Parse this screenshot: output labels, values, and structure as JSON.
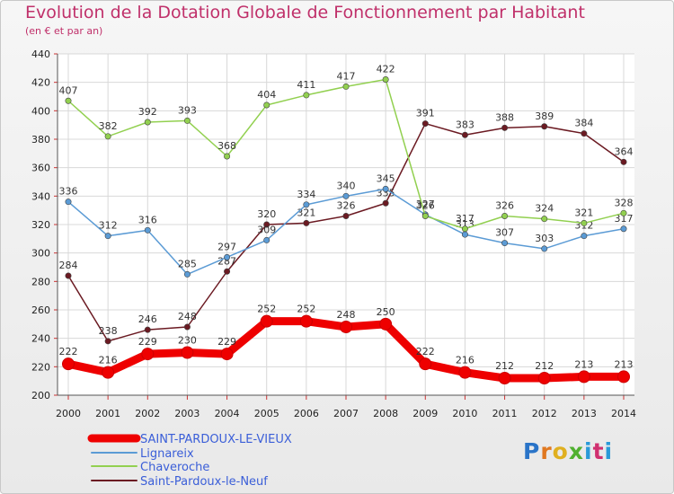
{
  "header": {
    "title": "Evolution de la Dotation Globale de Fonctionnement par Habitant",
    "subtitle": "(en € et par an)"
  },
  "logo": {
    "text": "Proxiti"
  },
  "chart_data": {
    "type": "line",
    "title": "Evolution de la Dotation Globale de Fonctionnement par Habitant",
    "subtitle": "(en € et par an)",
    "xlabel": "",
    "ylabel": "",
    "x": [
      "2000",
      "2001",
      "2002",
      "2003",
      "2004",
      "2005",
      "2006",
      "2007",
      "2008",
      "2009",
      "2010",
      "2011",
      "2012",
      "2013",
      "2014"
    ],
    "ylim": [
      200,
      440
    ],
    "yticks": [
      200,
      220,
      240,
      260,
      280,
      300,
      320,
      340,
      360,
      380,
      400,
      420,
      440
    ],
    "grid": true,
    "legend_position": "bottom-left",
    "series": [
      {
        "name": "SAINT-PARDOUX-LE-VIEUX",
        "color": "#ee0000",
        "values": [
          222,
          216,
          229,
          230,
          229,
          252,
          252,
          248,
          250,
          222,
          216,
          212,
          212,
          213,
          213
        ]
      },
      {
        "name": "Lignareix",
        "color": "#5b9bd5",
        "values": [
          336,
          312,
          316,
          285,
          297,
          309,
          334,
          340,
          345,
          327,
          313,
          307,
          303,
          312,
          317
        ]
      },
      {
        "name": "Chaveroche",
        "color": "#92d050",
        "values": [
          407,
          382,
          392,
          393,
          368,
          404,
          411,
          417,
          422,
          326,
          317,
          326,
          324,
          321,
          328
        ]
      },
      {
        "name": "Saint-Pardoux-le-Neuf",
        "color": "#6b1a22",
        "values": [
          284,
          238,
          246,
          248,
          287,
          320,
          321,
          326,
          335,
          391,
          383,
          388,
          389,
          384,
          364
        ]
      }
    ]
  }
}
